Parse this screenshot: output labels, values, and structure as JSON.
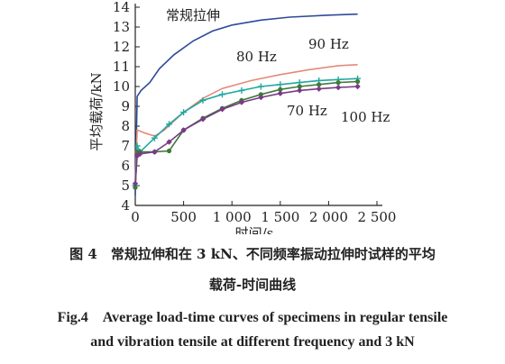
{
  "chart_data": {
    "type": "line",
    "xlabel": "时间/s",
    "ylabel": "平均载荷/kN",
    "xlim": [
      0,
      2500
    ],
    "ylim": [
      4,
      14
    ],
    "xticks": [
      0,
      500,
      1000,
      1500,
      2000,
      2500
    ],
    "xtick_labels": [
      "0",
      "500",
      "1 000",
      "1 500",
      "2 000",
      "2 500"
    ],
    "yticks": [
      4,
      5,
      6,
      7,
      8,
      9,
      10,
      11,
      12,
      13,
      14
    ],
    "ytick_labels": [
      "4",
      "5",
      "6",
      "7",
      "8",
      "9",
      "10",
      "11",
      "12",
      "13",
      "14"
    ],
    "grid": false,
    "series": [
      {
        "name": "常规拉伸",
        "color": "#2e4a9a",
        "marker": "none",
        "x": [
          0,
          20,
          60,
          150,
          250,
          400,
          600,
          800,
          1000,
          1300,
          1600,
          2000,
          2300
        ],
        "y": [
          4.5,
          9.5,
          9.8,
          10.2,
          10.9,
          11.6,
          12.3,
          12.8,
          13.1,
          13.35,
          13.5,
          13.6,
          13.65
        ]
      },
      {
        "name": "90 Hz",
        "color": "#e58a7a",
        "marker": "none",
        "x": [
          0,
          20,
          50,
          100,
          200,
          300,
          500,
          700,
          900,
          1200,
          1500,
          1800,
          2100,
          2300
        ],
        "y": [
          5,
          7.8,
          7.75,
          7.65,
          7.5,
          7.8,
          8.7,
          9.4,
          9.9,
          10.3,
          10.6,
          10.85,
          11.05,
          11.1
        ]
      },
      {
        "name": "80 Hz",
        "color": "#1fa8a0",
        "marker": "plus",
        "x": [
          0,
          20,
          50,
          200,
          350,
          500,
          700,
          900,
          1100,
          1300,
          1500,
          1700,
          1900,
          2100,
          2300
        ],
        "y": [
          5,
          7.0,
          6.7,
          7.4,
          8.1,
          8.7,
          9.3,
          9.6,
          9.8,
          10.0,
          10.1,
          10.2,
          10.3,
          10.35,
          10.4
        ]
      },
      {
        "name": "70 Hz",
        "color": "#3f7a3a",
        "marker": "circle",
        "x": [
          0,
          20,
          50,
          200,
          350,
          500,
          700,
          900,
          1100,
          1300,
          1500,
          1700,
          1900,
          2100,
          2300
        ],
        "y": [
          4.9,
          6.7,
          6.7,
          6.7,
          6.75,
          7.8,
          8.4,
          8.9,
          9.3,
          9.6,
          9.85,
          10.0,
          10.1,
          10.2,
          10.25
        ]
      },
      {
        "name": "100 Hz",
        "color": "#7a3a88",
        "marker": "diamond",
        "x": [
          0,
          20,
          50,
          200,
          350,
          500,
          700,
          900,
          1100,
          1300,
          1500,
          1700,
          1900,
          2100,
          2300
        ],
        "y": [
          5.1,
          6.5,
          6.6,
          6.7,
          7.2,
          7.8,
          8.35,
          8.85,
          9.2,
          9.45,
          9.65,
          9.8,
          9.88,
          9.95,
          10.0
        ]
      }
    ]
  },
  "caption": {
    "cn_line1": "图 4　常规拉伸和在 3 kN、不同频率振动拉伸时试样的平均",
    "cn_line2": "载荷-时间曲线",
    "en_line1": "Fig.4　Average load-time curves of specimens in regular tensile",
    "en_line2": "and vibration tensile at different frequency and 3 kN"
  }
}
